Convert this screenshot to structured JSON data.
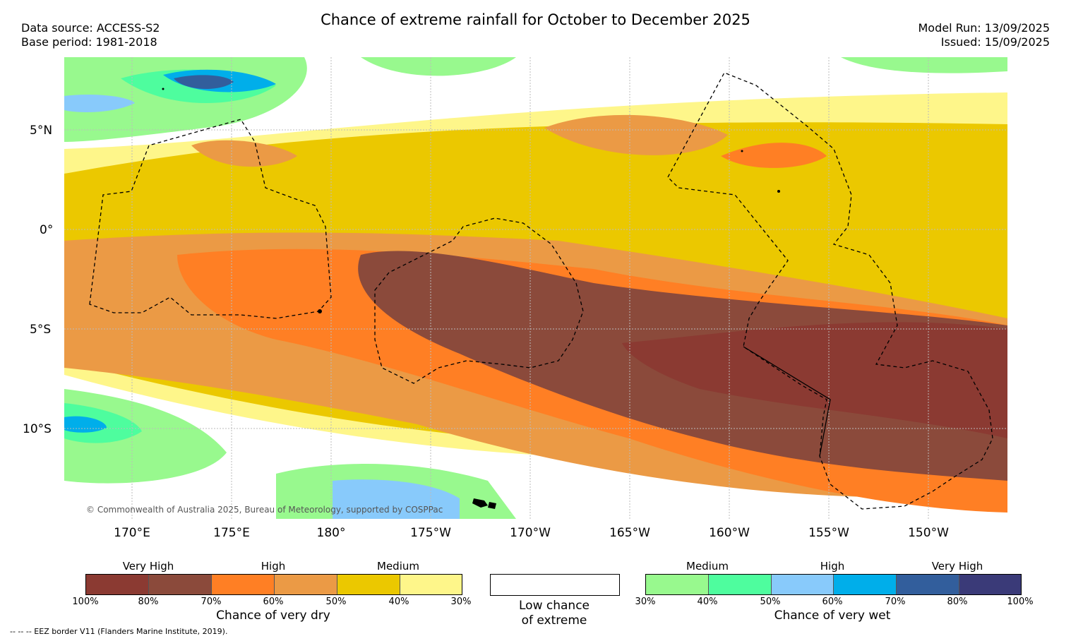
{
  "title": "Chance of extreme rainfall for October to December 2025",
  "meta": {
    "data_source": "Data source: ACCESS-S2",
    "base_period": "Base period: 1981-2018",
    "model_run": "Model Run: 13/09/2025",
    "issued": "Issued: 15/09/2025"
  },
  "axes": {
    "lat_labels": [
      "5°N",
      "0°",
      "5°S",
      "10°S"
    ],
    "lon_labels": [
      "170°E",
      "175°E",
      "180°",
      "175°W",
      "170°W",
      "165°W",
      "160°W",
      "155°W",
      "150°W"
    ]
  },
  "copyright": "© Commonwealth of Australia 2025, Bureau of Meteorology, supported by COSPPac",
  "legend": {
    "dry": {
      "categories": [
        "Very High",
        "High",
        "Medium"
      ],
      "ticks": [
        "100%",
        "80%",
        "70%",
        "60%",
        "50%",
        "40%",
        "30%"
      ],
      "colors": [
        "#8b3a32",
        "#8b4a3b",
        "#ff7f24",
        "#eb9a45",
        "#ebc800",
        "#fef68a"
      ],
      "title": "Chance of very dry"
    },
    "low": {
      "line1": "Low chance",
      "line2": "of extreme"
    },
    "wet": {
      "categories": [
        "Medium",
        "High",
        "Very High"
      ],
      "ticks": [
        "30%",
        "40%",
        "50%",
        "60%",
        "70%",
        "80%",
        "100%"
      ],
      "colors": [
        "#98f98e",
        "#4efd9e",
        "#88cafb",
        "#00aeea",
        "#325e9c",
        "#3a3a78"
      ],
      "title": "Chance of very wet"
    }
  },
  "footnote": "--  --  -- EEZ border V11 (Flanders Marine Institute, 2019)."
}
